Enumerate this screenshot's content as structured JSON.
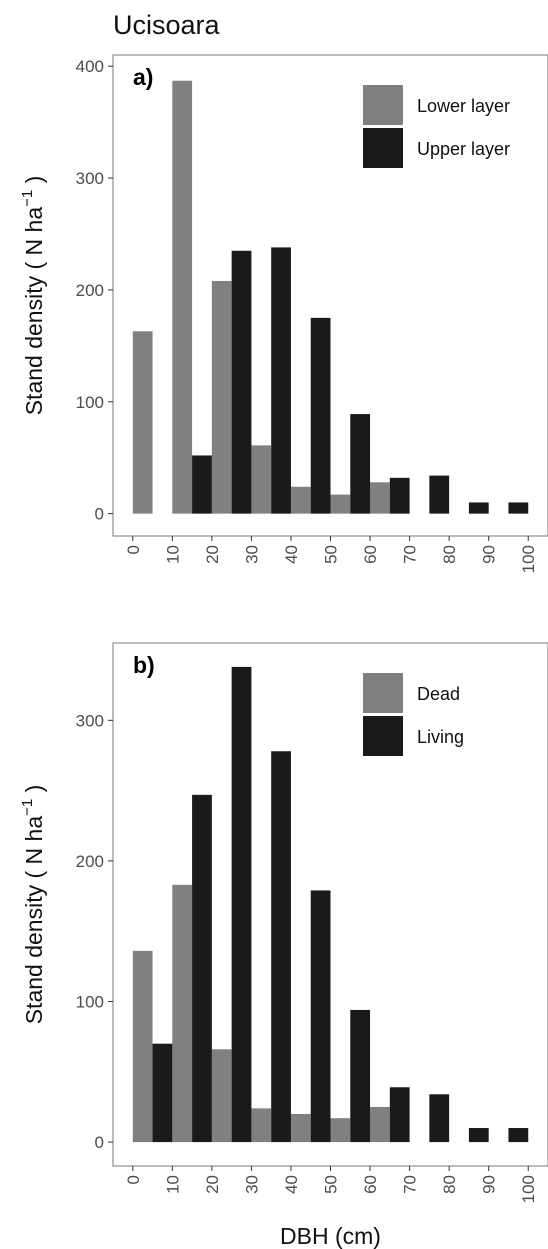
{
  "figure": {
    "title": "Ucisoara",
    "xlabel": "DBH (cm)"
  },
  "chart_data": [
    {
      "type": "bar",
      "panel_label": "a)",
      "title": "",
      "xlabel": "",
      "ylabel": "Stand density",
      "ylabel_unit": "( N ha",
      "ylabel_sup": "−1",
      "ylabel_close": " )",
      "xlim": [
        -5,
        105
      ],
      "ylim": [
        -20,
        410
      ],
      "x_ticks": [
        0,
        10,
        20,
        30,
        40,
        50,
        60,
        70,
        80,
        90,
        100
      ],
      "y_ticks": [
        0,
        100,
        200,
        300,
        400
      ],
      "bar_width": 5,
      "legend": "top-right",
      "series": [
        {
          "name": "Lower layer",
          "color": "#808080",
          "x": [
            2.5,
            12.5,
            22.5,
            32.5,
            42.5,
            52.5,
            62.5
          ],
          "values": [
            163,
            387,
            208,
            61,
            24,
            17,
            28
          ]
        },
        {
          "name": "Upper layer",
          "color": "#1a1a1a",
          "x": [
            17.5,
            27.5,
            37.5,
            47.5,
            57.5,
            67.5,
            77.5,
            87.5,
            97.5
          ],
          "values": [
            52,
            235,
            238,
            175,
            89,
            32,
            34,
            10,
            10
          ]
        }
      ]
    },
    {
      "type": "bar",
      "panel_label": "b)",
      "title": "",
      "xlabel": "DBH (cm)",
      "ylabel": "Stand density",
      "ylabel_unit": "( N ha",
      "ylabel_sup": "−1",
      "ylabel_close": " )",
      "xlim": [
        -5,
        105
      ],
      "ylim": [
        -17,
        355
      ],
      "x_ticks": [
        0,
        10,
        20,
        30,
        40,
        50,
        60,
        70,
        80,
        90,
        100
      ],
      "y_ticks": [
        0,
        100,
        200,
        300
      ],
      "bar_width": 5,
      "legend": "top-right",
      "series": [
        {
          "name": "Dead",
          "color": "#808080",
          "x": [
            2.5,
            12.5,
            22.5,
            32.5,
            42.5,
            52.5,
            62.5
          ],
          "values": [
            136,
            183,
            66,
            24,
            20,
            17,
            25
          ]
        },
        {
          "name": "Living",
          "color": "#1a1a1a",
          "x": [
            7.5,
            17.5,
            27.5,
            37.5,
            47.5,
            57.5,
            67.5,
            77.5,
            87.5,
            97.5
          ],
          "values": [
            70,
            247,
            338,
            278,
            179,
            94,
            39,
            34,
            10,
            10
          ]
        }
      ]
    }
  ]
}
